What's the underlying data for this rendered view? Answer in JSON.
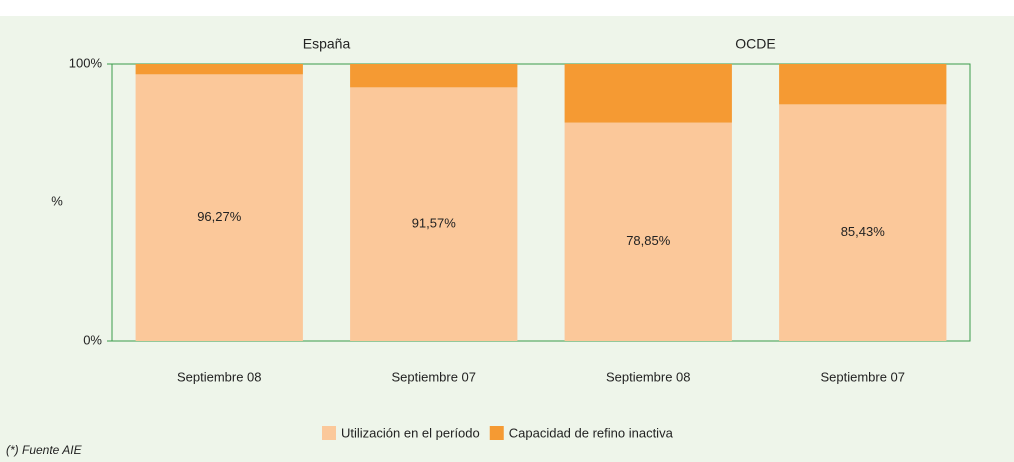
{
  "chart_data": {
    "type": "stacked_bar",
    "groups": [
      "España",
      "OCDE"
    ],
    "categories": [
      "Septiembre 08",
      "Septiembre 07",
      "Septiembre 08",
      "Septiembre 07"
    ],
    "series": [
      {
        "name": "Utilización en el período",
        "color": "#fbc89a",
        "values": [
          96.27,
          91.57,
          78.85,
          85.43
        ],
        "value_labels": [
          "96,27%",
          "91,57%",
          "78,85%",
          "85,43%"
        ]
      },
      {
        "name": "Capacidad de refino inactiva",
        "color": "#f59a33",
        "values": [
          3.73,
          8.43,
          21.15,
          14.57
        ]
      }
    ],
    "ylabel": "%",
    "ylim": [
      0,
      100
    ],
    "yticks": [
      {
        "value": 0,
        "label": "0%"
      },
      {
        "value": 100,
        "label": "100%"
      }
    ],
    "footnote": "(*) Fuente AIE"
  }
}
